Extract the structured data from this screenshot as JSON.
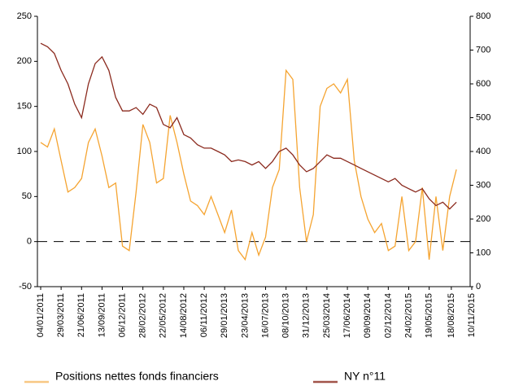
{
  "chart_data": {
    "type": "line",
    "x": [
      "04/01/2011",
      "01/02/2011",
      "01/03/2011",
      "29/03/2011",
      "26/04/2011",
      "24/05/2011",
      "21/06/2011",
      "19/07/2011",
      "16/08/2011",
      "13/09/2011",
      "11/10/2011",
      "08/11/2011",
      "06/12/2011",
      "03/01/2012",
      "31/01/2012",
      "28/02/2012",
      "27/03/2012",
      "24/04/2012",
      "22/05/2012",
      "19/06/2012",
      "17/07/2012",
      "14/08/2012",
      "11/09/2012",
      "09/10/2012",
      "06/11/2012",
      "04/12/2012",
      "01/01/2013",
      "29/01/2013",
      "26/02/2013",
      "26/03/2013",
      "23/04/2013",
      "21/05/2013",
      "18/06/2013",
      "16/07/2013",
      "13/08/2013",
      "10/09/2013",
      "08/10/2013",
      "05/11/2013",
      "03/12/2013",
      "31/12/2013",
      "28/01/2014",
      "25/02/2014",
      "25/03/2014",
      "22/04/2014",
      "20/05/2014",
      "17/06/2014",
      "15/07/2014",
      "12/08/2014",
      "09/09/2014",
      "07/10/2014",
      "04/11/2014",
      "02/12/2014",
      "30/12/2014",
      "27/01/2015",
      "24/02/2015",
      "24/03/2015",
      "21/04/2015",
      "19/05/2015",
      "16/06/2015",
      "14/07/2015",
      "11/08/2015",
      "08/09/2015"
    ],
    "series": [
      {
        "name": "Positions nettes fonds financiers",
        "color": "#f5a431",
        "values": [
          110,
          105,
          125,
          90,
          55,
          60,
          70,
          110,
          125,
          95,
          60,
          65,
          -5,
          -10,
          55,
          130,
          110,
          65,
          70,
          140,
          110,
          75,
          45,
          40,
          30,
          50,
          30,
          10,
          35,
          -10,
          -20,
          10,
          -15,
          5,
          60,
          80,
          190,
          180,
          60,
          0,
          30,
          150,
          170,
          175,
          165,
          180,
          90,
          50,
          25,
          10,
          20,
          -10,
          -5,
          50,
          -10,
          0,
          60,
          -20,
          50,
          -10,
          50,
          80
        ]
      },
      {
        "name": "NY n°11",
        "color": "#8b2a1e",
        "axis": "y2",
        "values": [
          720,
          710,
          690,
          640,
          600,
          540,
          500,
          600,
          660,
          680,
          640,
          560,
          520,
          520,
          530,
          510,
          540,
          530,
          480,
          470,
          500,
          450,
          440,
          420,
          410,
          410,
          400,
          390,
          370,
          375,
          370,
          360,
          370,
          350,
          370,
          400,
          410,
          390,
          360,
          340,
          350,
          370,
          390,
          380,
          380,
          370,
          360,
          350,
          340,
          330,
          320,
          310,
          320,
          300,
          290,
          280,
          290,
          260,
          240,
          250,
          230,
          250
        ]
      }
    ],
    "xticks": [
      "04/01/2011",
      "29/03/2011",
      "21/06/2011",
      "13/09/2011",
      "06/12/2011",
      "28/02/2012",
      "22/05/2012",
      "14/08/2012",
      "06/11/2012",
      "29/01/2013",
      "23/04/2013",
      "16/07/2013",
      "08/10/2013",
      "31/12/2013",
      "25/03/2014",
      "17/06/2014",
      "09/09/2014",
      "02/12/2014",
      "24/02/2015",
      "19/05/2015",
      "18/08/2015",
      "10/11/2015"
    ],
    "xlim": [
      "04/01/2011",
      "10/11/2015"
    ],
    "ylim": [
      -50,
      250
    ],
    "yticks": [
      -50,
      0,
      50,
      100,
      150,
      200,
      250
    ],
    "y2lim": [
      0,
      800
    ],
    "y2ticks": [
      0,
      100,
      200,
      300,
      400,
      500,
      600,
      700,
      800
    ],
    "legend": "bottom"
  }
}
